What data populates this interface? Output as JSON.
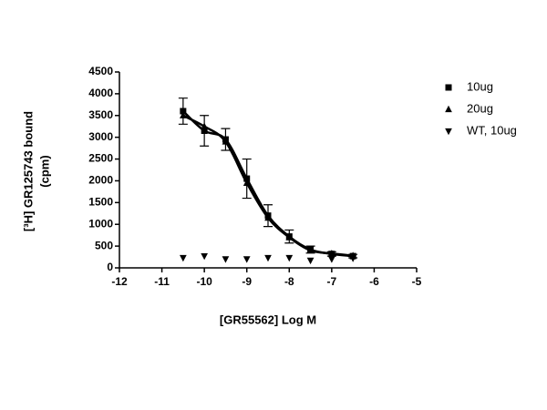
{
  "chart_data": {
    "type": "scatter",
    "ylabel": "[³H] GR125743 bound",
    "ylabel_unit": "(cpm)",
    "xlabel": "[GR55562] Log M",
    "xlim": [
      -12,
      -5
    ],
    "xticks": [
      -12,
      -11,
      -10,
      -9,
      -8,
      -7,
      -6,
      -5
    ],
    "ylim": [
      0,
      4500
    ],
    "yticks": [
      0,
      500,
      1000,
      1500,
      2000,
      2500,
      3000,
      3500,
      4000,
      4500
    ],
    "x": [
      -10.5,
      -10,
      -9.5,
      -9,
      -8.5,
      -8,
      -7.5,
      -7,
      -6.5
    ],
    "legend": "upper right",
    "series": [
      {
        "name": "10ug",
        "color": "#000000",
        "marker": "square",
        "line": true,
        "values": [
          3600,
          3150,
          2950,
          2050,
          1200,
          720,
          420,
          320,
          270
        ],
        "errors": [
          300,
          350,
          250,
          450,
          250,
          150,
          80,
          50,
          40
        ]
      },
      {
        "name": "20ug",
        "color": "#000000",
        "marker": "triangle-up",
        "line": true,
        "values": [
          3500,
          3250,
          2900,
          1950,
          1150,
          700,
          400,
          330,
          280
        ]
      },
      {
        "name": "WT, 10ug",
        "color": "#000000",
        "marker": "triangle-down",
        "line": false,
        "values": [
          230,
          270,
          200,
          200,
          230,
          230,
          170,
          200,
          220
        ]
      }
    ]
  }
}
